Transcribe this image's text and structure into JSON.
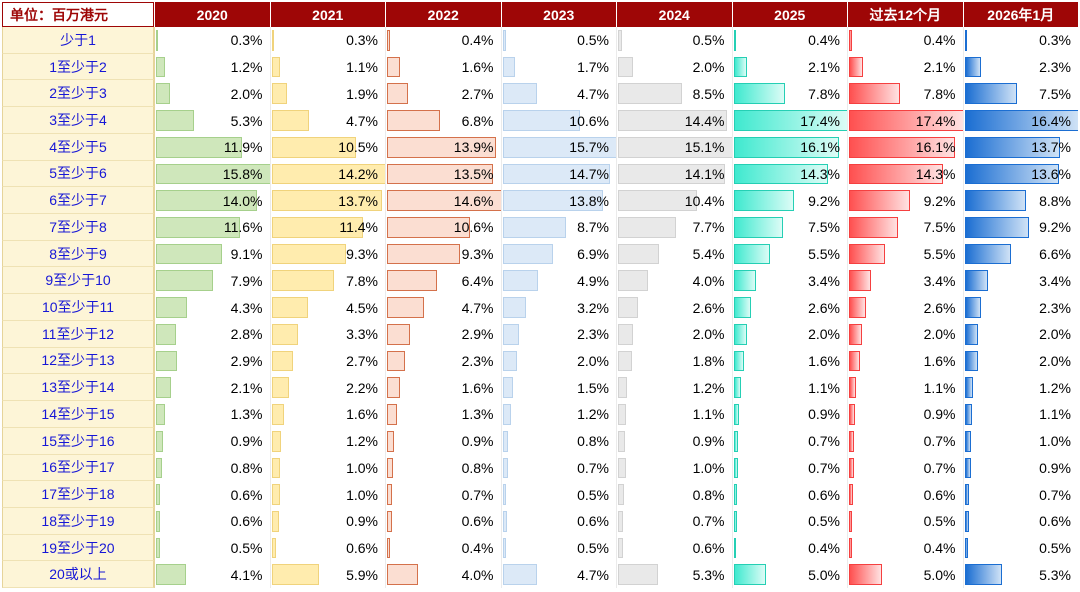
{
  "chart_data": {
    "type": "table",
    "unit_label": "单位：百万港元",
    "value_format": "percent_one_decimal",
    "bar_scaling": "per_column_max",
    "categories": [
      "少于1",
      "1至少于2",
      "2至少于3",
      "3至少于4",
      "4至少于5",
      "5至少于6",
      "6至少于7",
      "7至少于8",
      "8至少于9",
      "9至少于10",
      "10至少于11",
      "11至少于12",
      "12至少于13",
      "13至少于14",
      "14至少于15",
      "15至少于16",
      "16至少于17",
      "17至少于18",
      "18至少于19",
      "19至少于20",
      "20或以上"
    ],
    "series": [
      {
        "name": "2020",
        "values": [
          0.3,
          1.2,
          2.0,
          5.3,
          11.9,
          15.8,
          14.0,
          11.6,
          9.1,
          7.9,
          4.3,
          2.8,
          2.9,
          2.1,
          1.3,
          0.9,
          0.8,
          0.6,
          0.6,
          0.5,
          4.1
        ]
      },
      {
        "name": "2021",
        "values": [
          0.3,
          1.1,
          1.9,
          4.7,
          10.5,
          14.2,
          13.7,
          11.4,
          9.3,
          7.8,
          4.5,
          3.3,
          2.7,
          2.2,
          1.6,
          1.2,
          1.0,
          1.0,
          0.9,
          0.6,
          5.9
        ]
      },
      {
        "name": "2022",
        "values": [
          0.4,
          1.6,
          2.7,
          6.8,
          13.9,
          13.5,
          14.6,
          10.6,
          9.3,
          6.4,
          4.7,
          2.9,
          2.3,
          1.6,
          1.3,
          0.9,
          0.8,
          0.7,
          0.6,
          0.4,
          4.0
        ]
      },
      {
        "name": "2023",
        "values": [
          0.5,
          1.7,
          4.7,
          10.6,
          15.7,
          14.7,
          13.8,
          8.7,
          6.9,
          4.9,
          3.2,
          2.3,
          2.0,
          1.5,
          1.2,
          0.8,
          0.7,
          0.5,
          0.6,
          0.5,
          4.7
        ]
      },
      {
        "name": "2024",
        "values": [
          0.5,
          2.0,
          8.5,
          14.4,
          15.1,
          14.1,
          10.4,
          7.7,
          5.4,
          4.0,
          2.6,
          2.0,
          1.8,
          1.2,
          1.1,
          0.9,
          1.0,
          0.8,
          0.7,
          0.6,
          5.3
        ]
      },
      {
        "name": "2025",
        "values": [
          0.4,
          2.1,
          7.8,
          17.4,
          16.1,
          14.3,
          9.2,
          7.5,
          5.5,
          3.4,
          2.6,
          2.0,
          1.6,
          1.1,
          0.9,
          0.7,
          0.7,
          0.6,
          0.5,
          0.4,
          5.0
        ]
      },
      {
        "name": "过去12个月",
        "values": [
          0.4,
          2.1,
          7.8,
          17.4,
          16.1,
          14.3,
          9.2,
          7.5,
          5.5,
          3.4,
          2.6,
          2.0,
          1.6,
          1.1,
          0.9,
          0.7,
          0.7,
          0.6,
          0.5,
          0.4,
          5.0
        ]
      },
      {
        "name": "2026年1月",
        "values": [
          0.3,
          2.3,
          7.5,
          16.4,
          13.7,
          13.6,
          8.8,
          9.2,
          6.6,
          3.4,
          2.3,
          2.0,
          2.0,
          1.2,
          1.1,
          1.0,
          0.9,
          0.7,
          0.6,
          0.5,
          5.3
        ]
      }
    ]
  },
  "styles": {
    "header_bg": "#9e0606",
    "header_text": "#ffffff",
    "unit_text": "#9e0606",
    "label_bg": "#fdf5d7",
    "label_text": "#1616d6",
    "column_bars": [
      {
        "type": "solid",
        "fill": "#cfe7bb",
        "border": "#a6d08c"
      },
      {
        "type": "solid",
        "fill": "#ffecae",
        "border": "#f0d37c"
      },
      {
        "type": "solid",
        "fill": "#fbded2",
        "border": "#d4714b"
      },
      {
        "type": "solid",
        "fill": "#dce9f7",
        "border": "#b9d2ec"
      },
      {
        "type": "solid",
        "fill": "#e9e9e9",
        "border": "#d2d2d2"
      },
      {
        "type": "gradient",
        "from": "#3fe9cf",
        "to": "#dcfcf6",
        "border": "#25cfb4"
      },
      {
        "type": "gradient",
        "from": "#ff5050",
        "to": "#ffe2e2",
        "border": "#f54040"
      },
      {
        "type": "gradient",
        "from": "#1b6ed2",
        "to": "#cfe2f6",
        "border": "#1b6ed2"
      }
    ]
  }
}
